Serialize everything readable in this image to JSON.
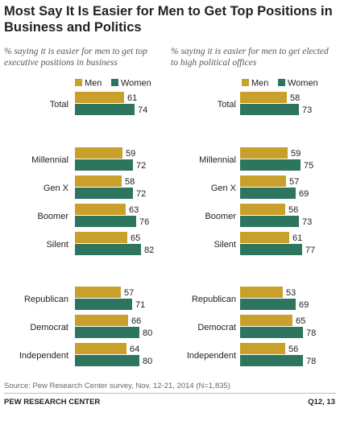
{
  "title": "Most Say It Is Easier for Men to Get Top Positions in Business and Politics",
  "source": "Source: Pew Research Center survey, Nov. 12-21, 2014 (N=1,835)",
  "footer": {
    "org": "PEW RESEARCH CENTER",
    "code": "Q12, 13"
  },
  "colors": {
    "men": "#C9A02C",
    "women": "#2E7560"
  },
  "chart_data": [
    {
      "type": "bar",
      "orientation": "horizontal",
      "subtitle": "% saying it is easier for men to get top executive positions in business",
      "legend": [
        "Men",
        "Women"
      ],
      "categories": [
        "Total",
        "Millennial",
        "Gen X",
        "Boomer",
        "Silent",
        "Republican",
        "Democrat",
        "Independent"
      ],
      "series": [
        {
          "name": "Men",
          "values": [
            61,
            59,
            58,
            63,
            65,
            57,
            66,
            64
          ]
        },
        {
          "name": "Women",
          "values": [
            74,
            72,
            72,
            76,
            82,
            71,
            80,
            80
          ]
        }
      ]
    },
    {
      "type": "bar",
      "orientation": "horizontal",
      "subtitle": "% saying it is easier for men to get elected to high political offices",
      "legend": [
        "Men",
        "Women"
      ],
      "categories": [
        "Total",
        "Millennial",
        "Gen X",
        "Boomer",
        "Silent",
        "Republican",
        "Democrat",
        "Independent"
      ],
      "series": [
        {
          "name": "Men",
          "values": [
            58,
            59,
            57,
            56,
            61,
            53,
            65,
            56
          ]
        },
        {
          "name": "Women",
          "values": [
            73,
            75,
            69,
            73,
            77,
            69,
            78,
            78
          ]
        }
      ]
    }
  ]
}
